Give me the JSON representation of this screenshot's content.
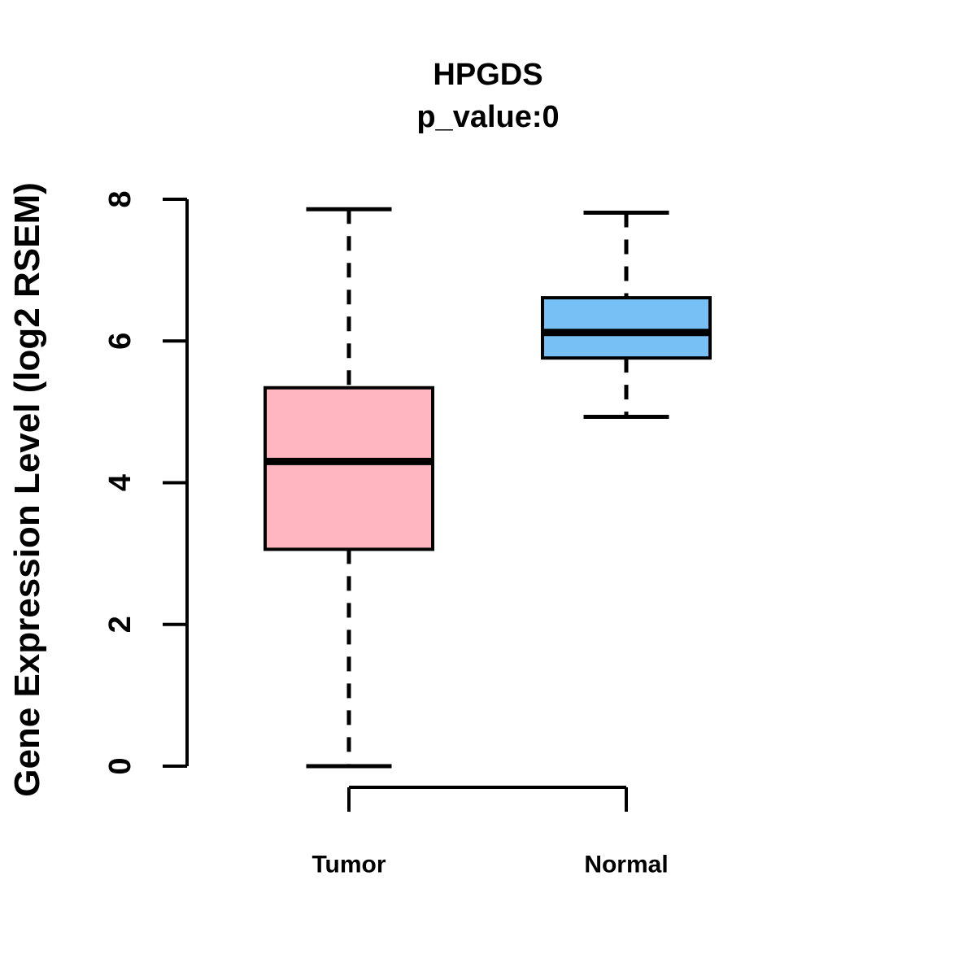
{
  "chart_data": {
    "type": "boxplot",
    "title": "HPGDS",
    "subtitle": "p_value:0",
    "ylabel": "Gene Expression Level (log2 RSEM)",
    "categories": [
      "Tumor",
      "Normal"
    ],
    "yticks": [
      0,
      2,
      4,
      6,
      8
    ],
    "ylim": [
      0,
      8
    ],
    "grid": false,
    "legend": "none",
    "series": [
      {
        "name": "Tumor",
        "whisker_low": 0,
        "q1": 3.06,
        "median": 4.3,
        "q3": 5.34,
        "whisker_high": 7.86,
        "fill": "#FFB6C1"
      },
      {
        "name": "Normal",
        "whisker_low": 4.93,
        "q1": 5.76,
        "median": 6.12,
        "q3": 6.61,
        "whisker_high": 7.81,
        "fill": "#76C0F6"
      }
    ],
    "colors": {
      "line": "#000000",
      "background": "#FFFFFF",
      "tumor_fill": "#FFB6C1",
      "normal_fill": "#76C0F6"
    }
  }
}
